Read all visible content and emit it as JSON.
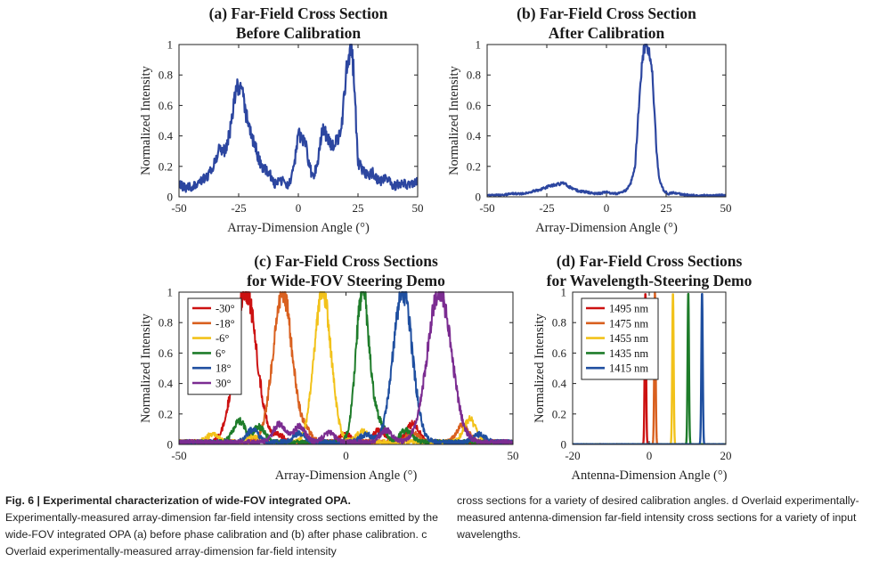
{
  "colors": {
    "blue": "#2c46a0",
    "red": "#cc1111",
    "orange": "#d9601f",
    "yellow": "#f2c21a",
    "green": "#1e7c2a",
    "navy": "#1f4fa0",
    "purple": "#7b2c91"
  },
  "chart_data": [
    {
      "id": "a",
      "type": "line",
      "title": [
        "(a) Far-Field Cross Section",
        "Before Calibration"
      ],
      "xlabel": "Array-Dimension Angle (°)",
      "ylabel": "Normalized Intensity",
      "xlim": [
        -50,
        50
      ],
      "ylim": [
        0,
        1
      ],
      "xticks": [
        "-50",
        "-25",
        "0",
        "25",
        "50"
      ],
      "xtick_values": [
        -50,
        -25,
        0,
        25,
        50
      ],
      "yticks": [
        "0",
        "0.2",
        "0.4",
        "0.6",
        "0.8",
        "1"
      ],
      "ytick_values": [
        0,
        0.2,
        0.4,
        0.6,
        0.8,
        1
      ],
      "series": [
        {
          "color": "#2c46a0",
          "x": [
            -50,
            -47,
            -44,
            -41,
            -38,
            -35,
            -33,
            -31,
            -29,
            -27,
            -26,
            -25,
            -24,
            -23,
            -22,
            -20,
            -18,
            -16,
            -14,
            -12,
            -10,
            -8,
            -6,
            -4,
            -2,
            0,
            2,
            3,
            4,
            6,
            8,
            10,
            12,
            14,
            16,
            18,
            20,
            21,
            22,
            23,
            24,
            25,
            27,
            29,
            31,
            34,
            37,
            40,
            43,
            46,
            50
          ],
          "y": [
            0.08,
            0.06,
            0.07,
            0.1,
            0.14,
            0.22,
            0.32,
            0.3,
            0.4,
            0.62,
            0.7,
            0.72,
            0.68,
            0.65,
            0.55,
            0.42,
            0.33,
            0.22,
            0.18,
            0.15,
            0.08,
            0.11,
            0.1,
            0.07,
            0.18,
            0.42,
            0.38,
            0.35,
            0.25,
            0.12,
            0.22,
            0.44,
            0.4,
            0.32,
            0.36,
            0.44,
            0.8,
            0.9,
            1.0,
            0.85,
            0.55,
            0.22,
            0.18,
            0.14,
            0.16,
            0.1,
            0.12,
            0.07,
            0.09,
            0.08,
            0.1
          ]
        }
      ]
    },
    {
      "id": "b",
      "type": "line",
      "title": [
        "(b) Far-Field Cross Section",
        "After Calibration"
      ],
      "xlabel": "Array-Dimension Angle (°)",
      "ylabel": "Normalized Intensity",
      "xlim": [
        -50,
        50
      ],
      "ylim": [
        0,
        1
      ],
      "xticks": [
        "-50",
        "-25",
        "0",
        "25",
        "50"
      ],
      "xtick_values": [
        -50,
        -25,
        0,
        25,
        50
      ],
      "yticks": [
        "0",
        "0.2",
        "0.4",
        "0.6",
        "0.8",
        "1"
      ],
      "ytick_values": [
        0,
        0.2,
        0.4,
        0.6,
        0.8,
        1
      ],
      "series": [
        {
          "color": "#2c46a0",
          "x": [
            -50,
            -45,
            -40,
            -35,
            -30,
            -27,
            -24,
            -21,
            -18,
            -15,
            -12,
            -8,
            -4,
            0,
            4,
            8,
            10,
            12,
            13,
            14,
            15,
            16,
            17,
            18,
            19,
            20,
            21,
            22,
            24,
            26,
            28,
            30,
            35,
            40,
            45,
            50
          ],
          "y": [
            0.01,
            0.01,
            0.02,
            0.02,
            0.04,
            0.05,
            0.07,
            0.08,
            0.09,
            0.06,
            0.04,
            0.03,
            0.02,
            0.03,
            0.02,
            0.04,
            0.08,
            0.2,
            0.45,
            0.7,
            0.9,
            0.98,
            1.0,
            0.95,
            0.85,
            0.6,
            0.3,
            0.12,
            0.04,
            0.02,
            0.03,
            0.02,
            0.01,
            0.01,
            0.01,
            0.01
          ]
        }
      ]
    },
    {
      "id": "c",
      "type": "line",
      "title": [
        "(c) Far-Field Cross Sections",
        "for Wide-FOV Steering Demo"
      ],
      "xlabel": "Array-Dimension Angle (°)",
      "ylabel": "Normalized Intensity",
      "xlim": [
        -50,
        50
      ],
      "ylim": [
        0,
        1
      ],
      "xticks": [
        "-50",
        "0",
        "50"
      ],
      "xtick_values": [
        -50,
        0,
        50
      ],
      "yticks": [
        "0",
        "0.2",
        "0.4",
        "0.6",
        "0.8",
        "1"
      ],
      "ytick_values": [
        0,
        0.2,
        0.4,
        0.6,
        0.8,
        1
      ],
      "legend": "top-left",
      "series": [
        {
          "name": "-30°",
          "color": "#cc1111",
          "center": -30,
          "width": 4.5,
          "side": [
            [
              0,
              0.05
            ],
            [
              10,
              0.08
            ],
            [
              20,
              0.12
            ],
            [
              -20,
              0.04
            ]
          ]
        },
        {
          "name": "-18°",
          "color": "#d9601f",
          "center": -19,
          "width": 4.0,
          "side": [
            [
              -12,
              0.06
            ],
            [
              20,
              0.06
            ],
            [
              35,
              0.12
            ]
          ]
        },
        {
          "name": "-6°",
          "color": "#f2c21a",
          "center": -7,
          "width": 3.5,
          "side": [
            [
              -40,
              0.05
            ],
            [
              -28,
              0.04
            ],
            [
              5,
              0.07
            ],
            [
              37,
              0.15
            ]
          ]
        },
        {
          "name": "6°",
          "color": "#1e7c2a",
          "center": 5,
          "width": 2.8,
          "side": [
            [
              -32,
              0.14
            ],
            [
              -26,
              0.1
            ],
            [
              18,
              0.08
            ],
            [
              10,
              0.12
            ]
          ]
        },
        {
          "name": "18°",
          "color": "#1f4fa0",
          "center": 17,
          "width": 4.0,
          "side": [
            [
              -28,
              0.08
            ],
            [
              -14,
              0.06
            ],
            [
              6,
              0.05
            ],
            [
              40,
              0.05
            ]
          ]
        },
        {
          "name": "30°",
          "color": "#7b2c91",
          "center": 28,
          "width": 5.0,
          "side": [
            [
              -20,
              0.12
            ],
            [
              -14,
              0.1
            ],
            [
              -5,
              0.06
            ],
            [
              12,
              0.08
            ]
          ]
        }
      ]
    },
    {
      "id": "d",
      "type": "line",
      "title": [
        "(d) Far-Field Cross Sections",
        "for Wavelength-Steering Demo"
      ],
      "xlabel": "Antenna-Dimension Angle (°)",
      "ylabel": "Normalized Intensity",
      "xlim": [
        -20,
        20
      ],
      "ylim": [
        0,
        1
      ],
      "xticks": [
        "-20",
        "0",
        "20"
      ],
      "xtick_values": [
        -20,
        0,
        20
      ],
      "yticks": [
        "0",
        "0.2",
        "0.4",
        "0.6",
        "0.8",
        "1"
      ],
      "ytick_values": [
        0,
        0.2,
        0.4,
        0.6,
        0.8,
        1
      ],
      "legend": "top-left",
      "series": [
        {
          "name": "1495 nm",
          "color": "#cc1111",
          "center": -1.0,
          "width": 0.25
        },
        {
          "name": "1475 nm",
          "color": "#d9601f",
          "center": 1.5,
          "width": 0.25
        },
        {
          "name": "1455 nm",
          "color": "#f2c21a",
          "center": 6.2,
          "width": 0.25
        },
        {
          "name": "1435 nm",
          "color": "#1e7c2a",
          "center": 10.2,
          "width": 0.25
        },
        {
          "name": "1415 nm",
          "color": "#1f4fa0",
          "center": 13.8,
          "width": 0.25
        }
      ]
    }
  ],
  "caption": {
    "heading": "Fig. 6 | Experimental characterization of wide-FOV integrated OPA.",
    "left_text": "Experimentally-measured array-dimension far-field intensity cross sections emitted by the wide-FOV integrated OPA (a) before phase calibration and (b) after phase calibration. c Overlaid experimentally-measured array-dimension far-field intensity",
    "right_text": "cross sections for a variety of desired calibration angles. d Overlaid experimentally-measured antenna-dimension far-field intensity cross sections for a variety of input wavelengths."
  }
}
